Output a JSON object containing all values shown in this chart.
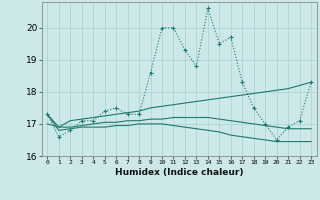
{
  "xlabel": "Humidex (Indice chaleur)",
  "x": [
    0,
    1,
    2,
    3,
    4,
    5,
    6,
    7,
    8,
    9,
    10,
    11,
    12,
    13,
    14,
    15,
    16,
    17,
    18,
    19,
    20,
    21,
    22,
    23
  ],
  "line1": [
    17.3,
    16.6,
    16.8,
    17.1,
    17.1,
    17.4,
    17.5,
    17.3,
    17.3,
    18.6,
    20.0,
    20.0,
    19.3,
    18.8,
    20.6,
    19.5,
    19.7,
    18.3,
    17.5,
    17.0,
    16.5,
    16.9,
    17.1,
    18.3
  ],
  "line2": [
    17.3,
    16.9,
    17.1,
    17.15,
    17.2,
    17.25,
    17.3,
    17.35,
    17.4,
    17.5,
    17.55,
    17.6,
    17.65,
    17.7,
    17.75,
    17.8,
    17.85,
    17.9,
    17.95,
    18.0,
    18.05,
    18.1,
    18.2,
    18.3
  ],
  "line3": [
    17.0,
    16.9,
    16.9,
    16.95,
    17.0,
    17.05,
    17.05,
    17.1,
    17.1,
    17.15,
    17.15,
    17.2,
    17.2,
    17.2,
    17.2,
    17.15,
    17.1,
    17.05,
    17.0,
    16.95,
    16.9,
    16.85,
    16.85,
    16.85
  ],
  "line4": [
    17.3,
    16.8,
    16.85,
    16.9,
    16.9,
    16.9,
    16.95,
    16.95,
    17.0,
    17.0,
    17.0,
    16.95,
    16.9,
    16.85,
    16.8,
    16.75,
    16.65,
    16.6,
    16.55,
    16.5,
    16.45,
    16.45,
    16.45,
    16.45
  ],
  "line_color": "#1a7a6e",
  "bg_color": "#cce8e8",
  "grid_color": "#aed4d4",
  "ylim": [
    16.0,
    20.8
  ],
  "yticks": [
    16,
    17,
    18,
    19,
    20
  ],
  "xticks": [
    0,
    1,
    2,
    3,
    4,
    5,
    6,
    7,
    8,
    9,
    10,
    11,
    12,
    13,
    14,
    15,
    16,
    17,
    18,
    19,
    20,
    21,
    22,
    23
  ]
}
